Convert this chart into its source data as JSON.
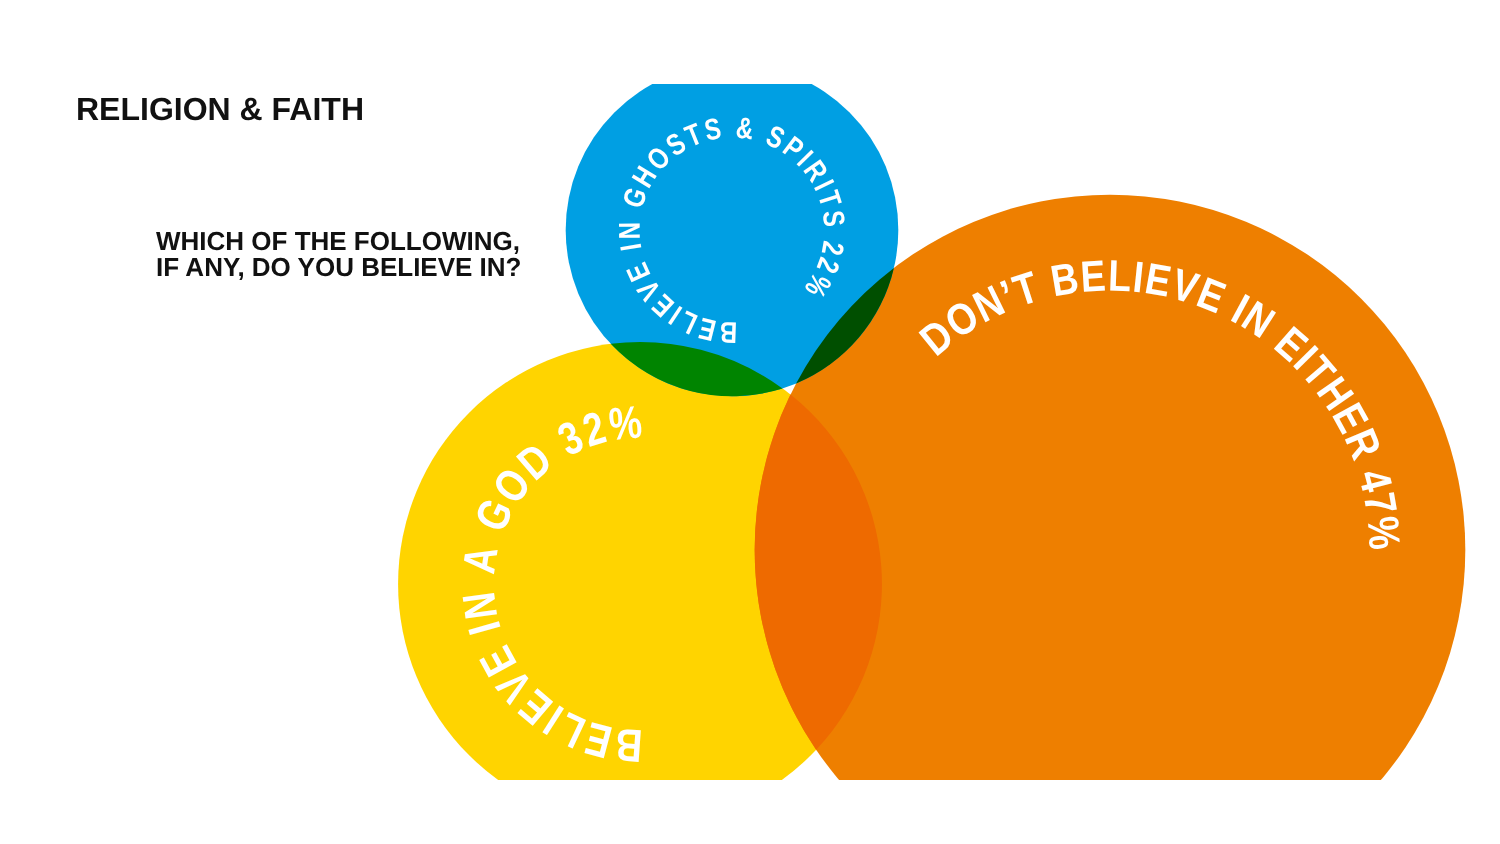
{
  "chart_data": {
    "type": "other",
    "title": "RELIGION & FAITH",
    "subtitle": "WHICH OF THE FOLLOWING, IF ANY, DO YOU BELIEVE IN?",
    "categories": [
      "BELIEVE IN GHOSTS & SPIRITS",
      "BELIEVE IN A GOD",
      "DON’T BELIEVE IN EITHER"
    ],
    "values": [
      22,
      32,
      47
    ],
    "value_labels": [
      "22%",
      "32%",
      "47%"
    ],
    "colors": [
      "#009fe3",
      "#ffd400",
      "#ee7f00"
    ]
  }
}
